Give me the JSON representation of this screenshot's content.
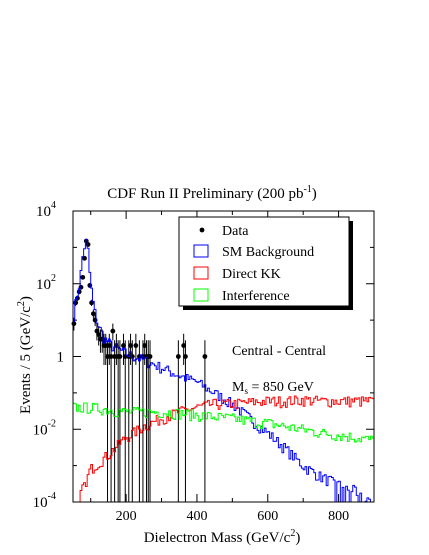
{
  "chart_data": {
    "type": "line",
    "title": "CDF Run II Preliminary (200 pb",
    "title_sup": "-1",
    "title_end": ")",
    "xlabel": "Dielectron Mass (GeV/c",
    "xlabel_sup": "2",
    "xlabel_end": ")",
    "ylabel": "Events / 5 (GeV/c",
    "ylabel_sup": "2",
    "ylabel_end": ")",
    "xlim": [
      50,
      900
    ],
    "ylim": [
      0.0001,
      10000
    ],
    "yscale": "log",
    "x_ticks": [
      {
        "value": 200,
        "label": "200"
      },
      {
        "value": 400,
        "label": "400"
      },
      {
        "value": 600,
        "label": "600"
      },
      {
        "value": 800,
        "label": "800"
      }
    ],
    "y_ticks": [
      {
        "value": 0.0001,
        "base": "10",
        "exp": "-4"
      },
      {
        "value": 0.01,
        "base": "10",
        "exp": "-2"
      },
      {
        "value": 1,
        "base": "1",
        "exp": ""
      },
      {
        "value": 100,
        "base": "10",
        "exp": "2"
      },
      {
        "value": 10000,
        "base": "10",
        "exp": "4"
      }
    ],
    "legend": {
      "placement": "top-right",
      "entries": [
        {
          "label": "Data",
          "style": "marker",
          "color": "#000000"
        },
        {
          "label": "SM Background",
          "style": "box",
          "color": "#0000ff"
        },
        {
          "label": "Direct KK",
          "style": "box",
          "color": "#ff0000"
        },
        {
          "label": "Interference",
          "style": "box",
          "color": "#00ff00"
        }
      ]
    },
    "annotations": [
      {
        "id": "region",
        "text": "Central - Central"
      },
      {
        "id": "mass",
        "text_main": "M",
        "text_sub": "s",
        "text_rest": " = 850 GeV"
      }
    ],
    "series": [
      {
        "name": "Data",
        "kind": "points",
        "color": "#000000",
        "points": [
          [
            52.5,
            8
          ],
          [
            57.5,
            30
          ],
          [
            62.5,
            40
          ],
          [
            67.5,
            60
          ],
          [
            72.5,
            80
          ],
          [
            77.5,
            150
          ],
          [
            82.5,
            500
          ],
          [
            87.5,
            1500
          ],
          [
            92.5,
            1200
          ],
          [
            97.5,
            90
          ],
          [
            102.5,
            30
          ],
          [
            107.5,
            15
          ],
          [
            112.5,
            10
          ],
          [
            117.5,
            5
          ],
          [
            122.5,
            4
          ],
          [
            127.5,
            3
          ],
          [
            132.5,
            3
          ],
          [
            137.5,
            2
          ],
          [
            142.5,
            2
          ],
          [
            147.5,
            1
          ],
          [
            152.5,
            2
          ],
          [
            157.5,
            1
          ],
          [
            162.5,
            5
          ],
          [
            167.5,
            1
          ],
          [
            172.5,
            2
          ],
          [
            177.5,
            1
          ],
          [
            182.5,
            1
          ],
          [
            192.5,
            2
          ],
          [
            197.5,
            1
          ],
          [
            207.5,
            1
          ],
          [
            212.5,
            2
          ],
          [
            217.5,
            1
          ],
          [
            227.5,
            2
          ],
          [
            237.5,
            1
          ],
          [
            247.5,
            1
          ],
          [
            252.5,
            2
          ],
          [
            257.5,
            1
          ],
          [
            262.5,
            1
          ],
          [
            267.5,
            1
          ],
          [
            347.5,
            1
          ],
          [
            362.5,
            2
          ],
          [
            367.5,
            1
          ],
          [
            422.5,
            1
          ]
        ]
      },
      {
        "name": "SM Background",
        "kind": "histogram",
        "color": "#0000ff",
        "points": [
          [
            50,
            10
          ],
          [
            60,
            40
          ],
          [
            70,
            120
          ],
          [
            80,
            900
          ],
          [
            90,
            1600
          ],
          [
            100,
            100
          ],
          [
            110,
            20
          ],
          [
            120,
            8
          ],
          [
            140,
            3
          ],
          [
            160,
            2
          ],
          [
            200,
            1.2
          ],
          [
            250,
            0.8
          ],
          [
            300,
            0.5
          ],
          [
            350,
            0.3
          ],
          [
            400,
            0.2
          ],
          [
            450,
            0.1
          ],
          [
            500,
            0.05
          ],
          [
            550,
            0.02
          ],
          [
            600,
            0.008
          ],
          [
            650,
            0.003
          ],
          [
            700,
            0.001
          ],
          [
            750,
            0.0005
          ],
          [
            800,
            0.0003
          ],
          [
            850,
            0.0002
          ],
          [
            900,
            0.0001
          ]
        ]
      },
      {
        "name": "Direct KK",
        "kind": "histogram",
        "color": "#ff0000",
        "points": [
          [
            50,
            5e-05
          ],
          [
            100,
            0.0008
          ],
          [
            150,
            0.002
          ],
          [
            200,
            0.006
          ],
          [
            250,
            0.012
          ],
          [
            300,
            0.02
          ],
          [
            350,
            0.03
          ],
          [
            400,
            0.04
          ],
          [
            450,
            0.05
          ],
          [
            500,
            0.05
          ],
          [
            550,
            0.055
          ],
          [
            600,
            0.06
          ],
          [
            650,
            0.06
          ],
          [
            700,
            0.065
          ],
          [
            750,
            0.06
          ],
          [
            800,
            0.06
          ],
          [
            850,
            0.06
          ],
          [
            900,
            0.06
          ]
        ]
      },
      {
        "name": "Interference",
        "kind": "histogram",
        "color": "#00ff00",
        "points": [
          [
            50,
            0.04
          ],
          [
            100,
            0.04
          ],
          [
            150,
            0.035
          ],
          [
            200,
            0.03
          ],
          [
            250,
            0.03
          ],
          [
            300,
            0.03
          ],
          [
            350,
            0.028
          ],
          [
            400,
            0.025
          ],
          [
            450,
            0.022
          ],
          [
            500,
            0.02
          ],
          [
            550,
            0.017
          ],
          [
            600,
            0.015
          ],
          [
            650,
            0.012
          ],
          [
            700,
            0.01
          ],
          [
            750,
            0.008
          ],
          [
            800,
            0.007
          ],
          [
            850,
            0.006
          ],
          [
            900,
            0.005
          ]
        ]
      }
    ]
  }
}
